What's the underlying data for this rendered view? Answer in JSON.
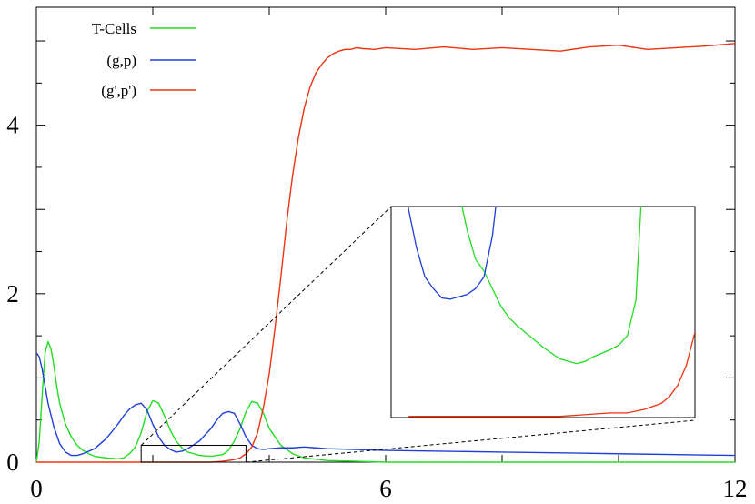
{
  "chart_data": {
    "type": "line",
    "title": "",
    "xlabel": "",
    "ylabel": "",
    "xlim": [
      0,
      12
    ],
    "ylim": [
      0,
      5.4
    ],
    "grid": false,
    "legend_position": "top-left",
    "x_ticks": [
      {
        "value": 0,
        "label": "0"
      },
      {
        "value": 6,
        "label": "6"
      },
      {
        "value": 12,
        "label": "12"
      }
    ],
    "y_ticks": [
      {
        "value": 0,
        "label": "0"
      },
      {
        "value": 2,
        "label": "2"
      },
      {
        "value": 4,
        "label": "4"
      }
    ],
    "series": [
      {
        "name": "T-Cells",
        "color": "#22dd22",
        "x": [
          0,
          0.05,
          0.1,
          0.15,
          0.2,
          0.25,
          0.3,
          0.35,
          0.4,
          0.5,
          0.6,
          0.7,
          0.8,
          0.9,
          1.0,
          1.2,
          1.4,
          1.5,
          1.6,
          1.7,
          1.8,
          1.9,
          2.0,
          2.1,
          2.2,
          2.3,
          2.4,
          2.5,
          2.6,
          2.8,
          3.0,
          3.2,
          3.3,
          3.4,
          3.5,
          3.6,
          3.7,
          3.8,
          3.9,
          4.0,
          4.2,
          4.4,
          4.6,
          5.0,
          5.5,
          6.0,
          8.0,
          12.0
        ],
        "y": [
          0.0,
          0.25,
          0.8,
          1.3,
          1.43,
          1.35,
          1.15,
          0.9,
          0.7,
          0.45,
          0.3,
          0.2,
          0.14,
          0.1,
          0.07,
          0.05,
          0.04,
          0.05,
          0.1,
          0.18,
          0.35,
          0.6,
          0.73,
          0.7,
          0.55,
          0.38,
          0.25,
          0.17,
          0.12,
          0.08,
          0.07,
          0.09,
          0.14,
          0.25,
          0.4,
          0.6,
          0.72,
          0.7,
          0.58,
          0.4,
          0.2,
          0.1,
          0.05,
          0.02,
          0.01,
          0.0,
          0.0,
          0.0
        ]
      },
      {
        "name": "(g,p)",
        "color": "#1f3fd8",
        "x": [
          0,
          0.05,
          0.1,
          0.15,
          0.2,
          0.3,
          0.4,
          0.5,
          0.6,
          0.7,
          0.8,
          1.0,
          1.2,
          1.4,
          1.5,
          1.6,
          1.7,
          1.8,
          1.9,
          2.0,
          2.1,
          2.2,
          2.3,
          2.4,
          2.5,
          2.6,
          2.8,
          3.0,
          3.1,
          3.2,
          3.3,
          3.4,
          3.5,
          3.6,
          3.7,
          3.8,
          3.9,
          4.0,
          4.2,
          4.4,
          4.6,
          4.8,
          5.0,
          6.0,
          8.0,
          10.0,
          12.0
        ],
        "y": [
          1.3,
          1.25,
          1.1,
          0.9,
          0.7,
          0.42,
          0.22,
          0.12,
          0.08,
          0.08,
          0.1,
          0.16,
          0.28,
          0.45,
          0.55,
          0.63,
          0.68,
          0.7,
          0.62,
          0.45,
          0.3,
          0.2,
          0.15,
          0.12,
          0.13,
          0.16,
          0.25,
          0.4,
          0.5,
          0.58,
          0.6,
          0.58,
          0.45,
          0.3,
          0.2,
          0.16,
          0.15,
          0.16,
          0.17,
          0.17,
          0.18,
          0.17,
          0.16,
          0.14,
          0.12,
          0.1,
          0.08
        ]
      },
      {
        "name": "(g',p')",
        "color": "#ee3311",
        "x": [
          0,
          3.0,
          3.2,
          3.4,
          3.5,
          3.6,
          3.7,
          3.8,
          3.9,
          4.0,
          4.1,
          4.2,
          4.3,
          4.4,
          4.5,
          4.6,
          4.7,
          4.8,
          4.9,
          5.0,
          5.1,
          5.2,
          5.3,
          5.4,
          5.5,
          5.6,
          5.8,
          6.0,
          6.5,
          7.0,
          7.5,
          8.0,
          8.5,
          9.0,
          9.5,
          10.0,
          10.5,
          11.0,
          11.5,
          12.0
        ],
        "y": [
          0.0,
          0.0,
          0.01,
          0.03,
          0.05,
          0.1,
          0.18,
          0.35,
          0.65,
          1.05,
          1.6,
          2.2,
          2.85,
          3.4,
          3.85,
          4.2,
          4.45,
          4.62,
          4.72,
          4.8,
          4.85,
          4.88,
          4.9,
          4.9,
          4.92,
          4.91,
          4.9,
          4.92,
          4.9,
          4.93,
          4.9,
          4.92,
          4.9,
          4.88,
          4.93,
          4.95,
          4.9,
          4.92,
          4.94,
          4.97
        ]
      }
    ],
    "inset": {
      "source_xlim": [
        1.8,
        3.6
      ],
      "source_ylim": [
        0,
        0.2
      ],
      "xlim": [
        1.8,
        3.6
      ],
      "ylim": [
        0.02,
        0.2
      ],
      "series": [
        {
          "name": "T-Cells",
          "x": [
            2.22,
            2.25,
            2.3,
            2.35,
            2.4,
            2.45,
            2.5,
            2.55,
            2.6,
            2.65,
            2.7,
            2.75,
            2.8,
            2.85,
            2.9,
            2.95,
            3.0,
            3.05,
            3.1,
            3.15,
            3.2,
            3.25,
            3.28
          ],
          "y": [
            0.2,
            0.18,
            0.155,
            0.145,
            0.13,
            0.115,
            0.105,
            0.098,
            0.092,
            0.086,
            0.08,
            0.075,
            0.07,
            0.068,
            0.066,
            0.068,
            0.072,
            0.075,
            0.078,
            0.082,
            0.09,
            0.12,
            0.2
          ]
        },
        {
          "name": "(g,p)",
          "x": [
            1.9,
            1.95,
            2.0,
            2.05,
            2.1,
            2.15,
            2.2,
            2.25,
            2.3,
            2.35,
            2.4,
            2.42
          ],
          "y": [
            0.2,
            0.165,
            0.14,
            0.13,
            0.122,
            0.121,
            0.123,
            0.125,
            0.13,
            0.14,
            0.175,
            0.2
          ]
        },
        {
          "name": "(g',p')",
          "x": [
            1.9,
            2.5,
            2.8,
            3.0,
            3.1,
            3.2,
            3.3,
            3.4,
            3.45,
            3.5,
            3.55,
            3.6
          ],
          "y": [
            0.021,
            0.021,
            0.021,
            0.023,
            0.024,
            0.024,
            0.027,
            0.032,
            0.038,
            0.048,
            0.065,
            0.093
          ]
        }
      ]
    }
  }
}
